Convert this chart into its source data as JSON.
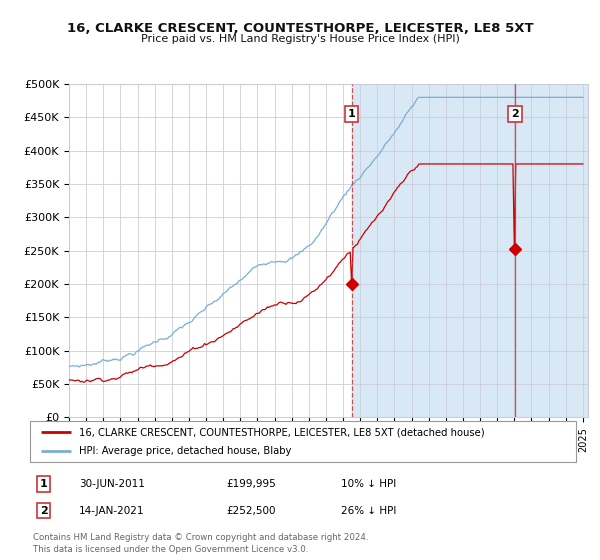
{
  "title": "16, CLARKE CRESCENT, COUNTESTHORPE, LEICESTER, LE8 5XT",
  "subtitle": "Price paid vs. HM Land Registry's House Price Index (HPI)",
  "ylabel_ticks": [
    "£0",
    "£50K",
    "£100K",
    "£150K",
    "£200K",
    "£250K",
    "£300K",
    "£350K",
    "£400K",
    "£450K",
    "£500K"
  ],
  "ytick_values": [
    0,
    50000,
    100000,
    150000,
    200000,
    250000,
    300000,
    350000,
    400000,
    450000,
    500000
  ],
  "x_start_year": 1995,
  "x_end_year": 2025,
  "purchase1_date": 2011.5,
  "purchase1_price": 199995,
  "purchase1_label": "1",
  "purchase1_date_str": "30-JUN-2011",
  "purchase1_price_str": "£199,995",
  "purchase1_hpi": "10% ↓ HPI",
  "purchase2_date": 2021.04,
  "purchase2_price": 252500,
  "purchase2_label": "2",
  "purchase2_date_str": "14-JAN-2021",
  "purchase2_price_str": "£252,500",
  "purchase2_hpi": "26% ↓ HPI",
  "legend_line1": "16, CLARKE CRESCENT, COUNTESTHORPE, LEICESTER, LE8 5XT (detached house)",
  "legend_line2": "HPI: Average price, detached house, Blaby",
  "footer": "Contains HM Land Registry data © Crown copyright and database right 2024.\nThis data is licensed under the Open Government Licence v3.0.",
  "hpi_color": "#7aaed4",
  "price_color": "#cc0000",
  "bg_color": "#d8e8f5",
  "grid_color": "#ccccdd",
  "title_color": "#111111",
  "vline_color": "#cc3333"
}
